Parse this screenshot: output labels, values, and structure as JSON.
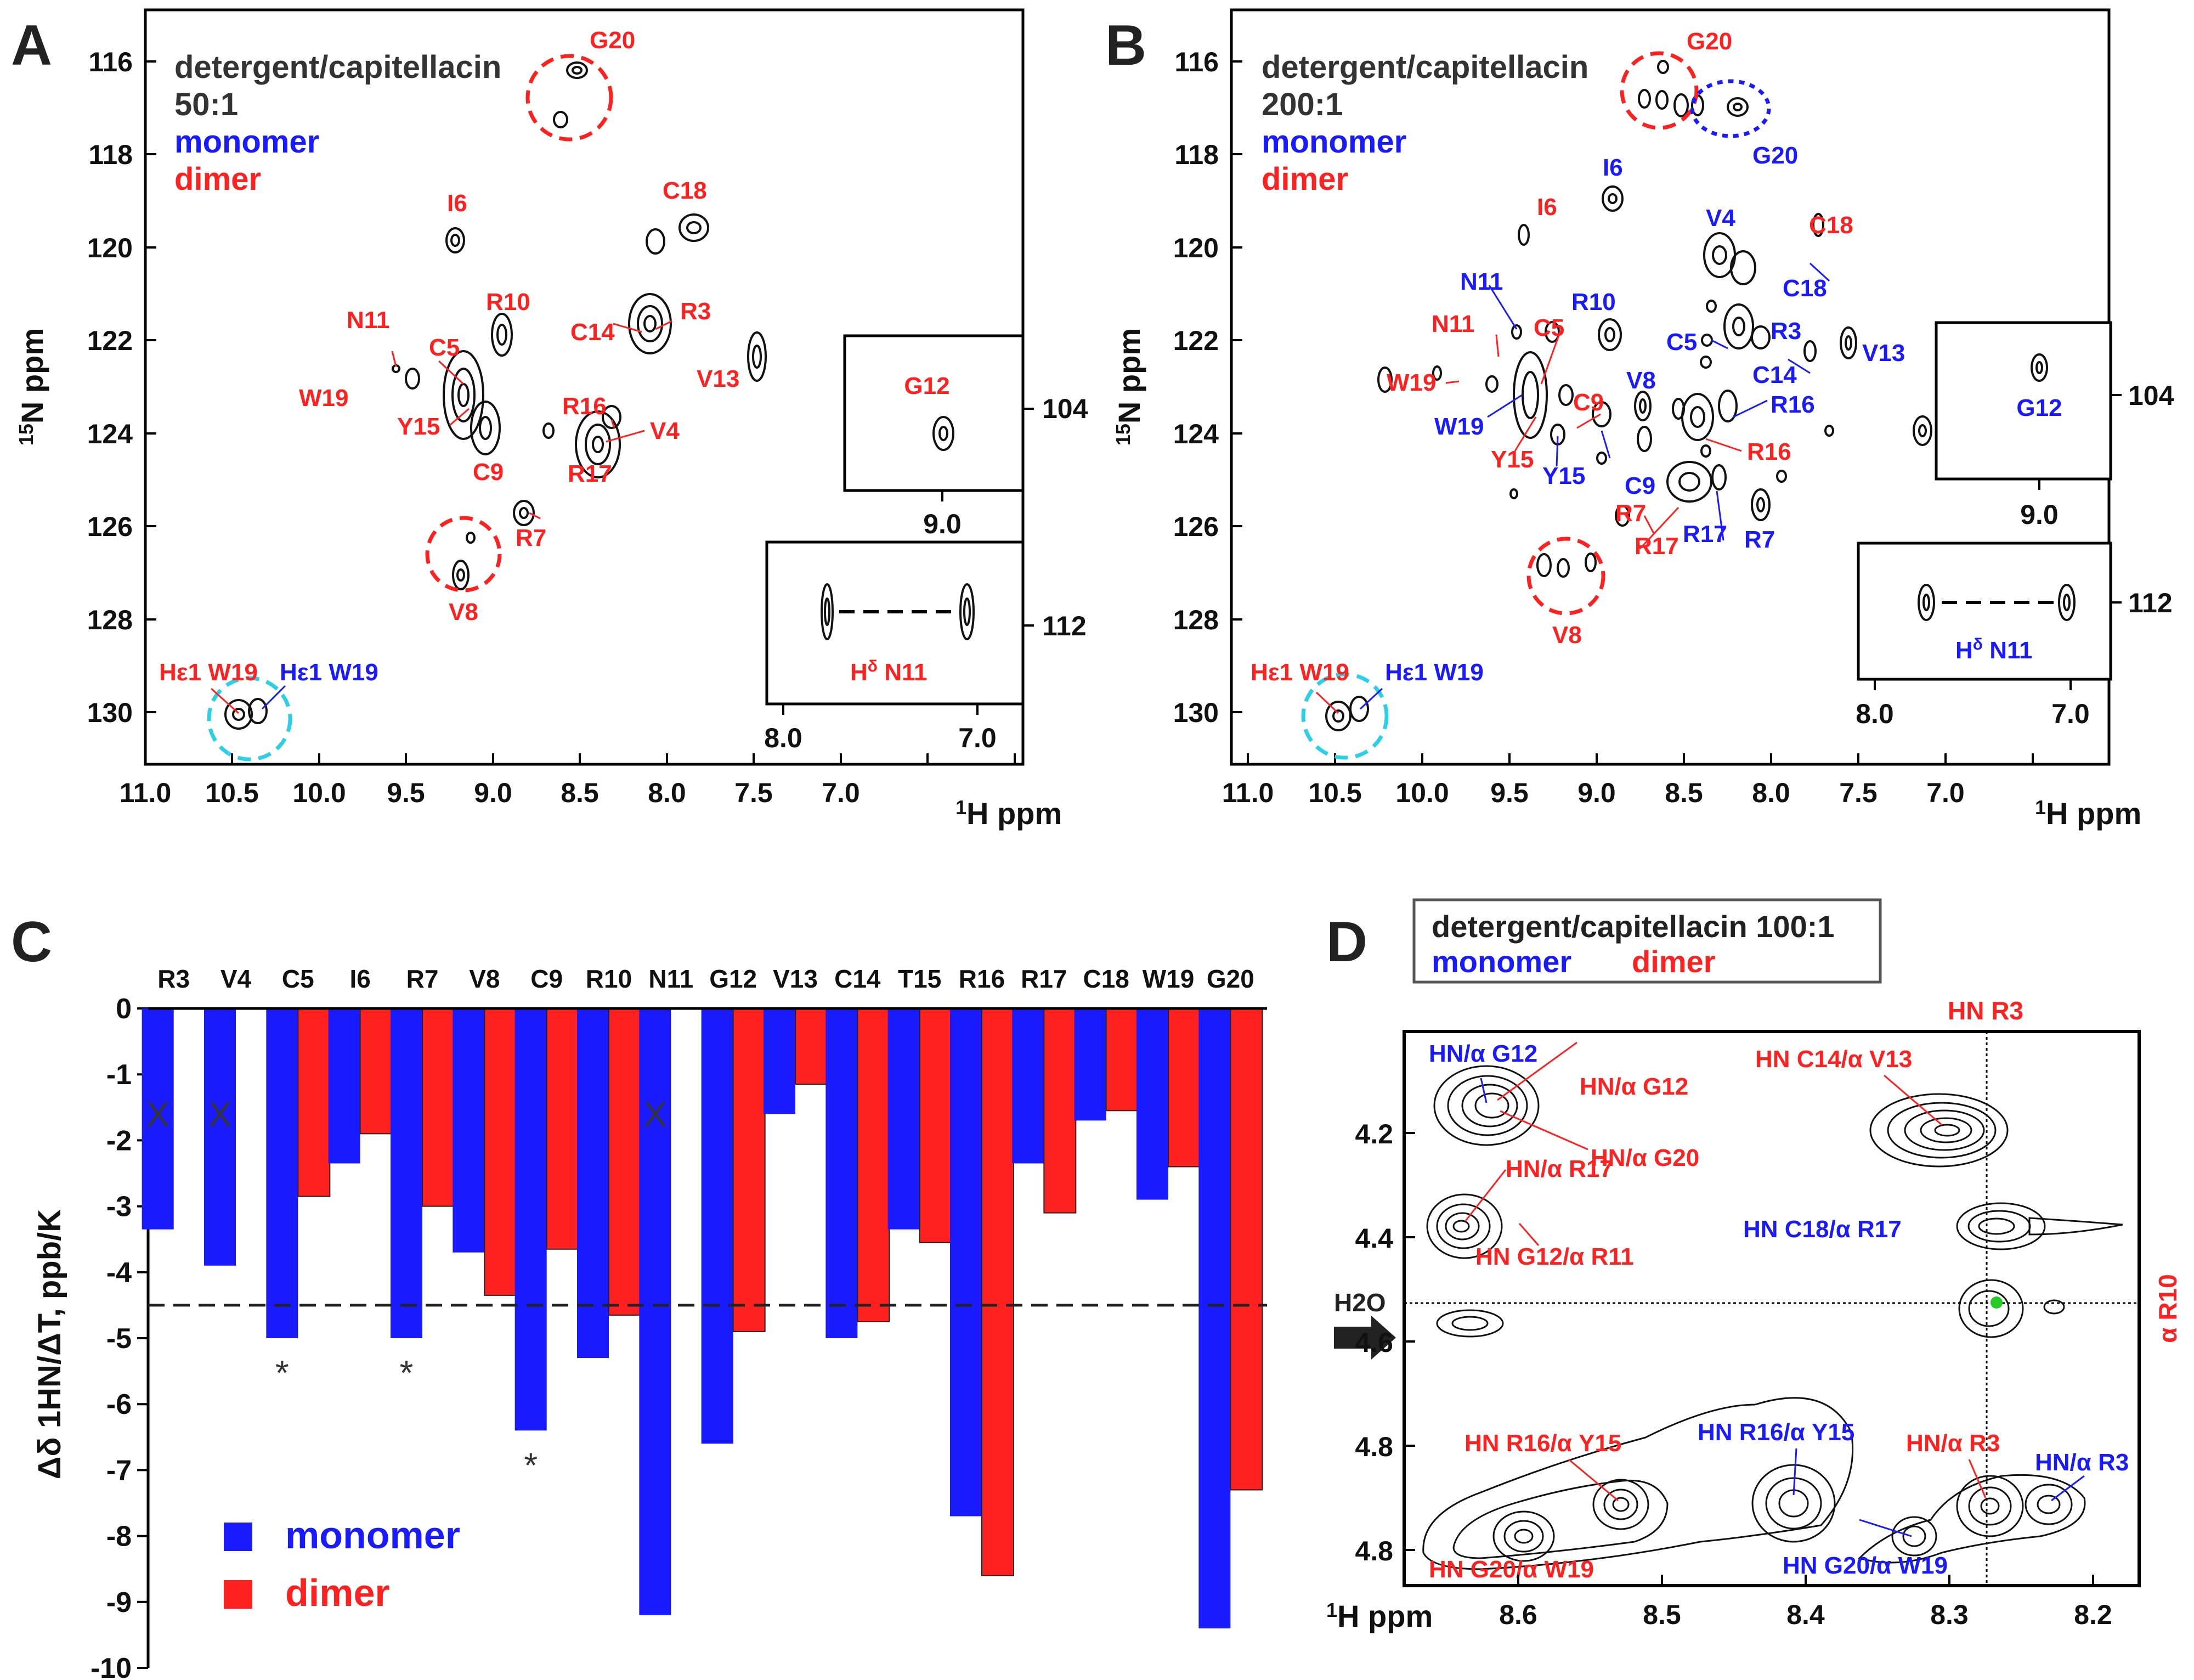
{
  "colors": {
    "monomer": "#1a1aff",
    "dimer": "#ff2020",
    "text": "#222222",
    "cyan": "#2cd0e6",
    "green": "#22cc22"
  },
  "panels": {
    "A": {
      "label": "A",
      "legend": [
        "detergent/capitellacin",
        "50:1",
        "monomer",
        "dimer"
      ],
      "x_ticks": [
        "11.0",
        "10.5",
        "10.0",
        "9.5",
        "9.0",
        "8.5",
        "8.0",
        "7.5",
        "7.0"
      ],
      "y_ticks": [
        "116",
        "118",
        "120",
        "122",
        "124",
        "126",
        "128",
        "130"
      ],
      "xlabel": "1H ppm",
      "ylabel": "15N ppm",
      "inset_top": {
        "label": "G12",
        "x_tick": "9.0",
        "y_tick": "104"
      },
      "inset_bottom": {
        "label": "Hδ N11",
        "x_ticks": [
          "8.0",
          "7.0"
        ],
        "y_tick": "112"
      },
      "red_labels": [
        "G20",
        "I6",
        "C18",
        "R10",
        "R3",
        "C14",
        "N11",
        "C5",
        "W19",
        "Y15",
        "V13",
        "R16",
        "V4",
        "C9",
        "R17",
        "R7",
        "V8"
      ],
      "he1_dimer": "Hε1 W19",
      "he1_monomer": "Hε1 W19"
    },
    "B": {
      "label": "B",
      "legend": [
        "detergent/capitellacin",
        "200:1",
        "monomer",
        "dimer"
      ],
      "x_ticks": [
        "11.0",
        "10.5",
        "10.0",
        "9.5",
        "9.0",
        "8.5",
        "8.0",
        "7.5",
        "7.0"
      ],
      "y_ticks": [
        "116",
        "118",
        "120",
        "122",
        "124",
        "126",
        "128",
        "130"
      ],
      "xlabel": "1H ppm",
      "ylabel": "15N ppm",
      "inset_top": {
        "label": "G12",
        "x_tick": "9.0",
        "y_tick": "104"
      },
      "inset_bottom": {
        "label": "Hδ N11",
        "x_ticks": [
          "8.0",
          "7.0"
        ],
        "y_tick": "112"
      },
      "red_labels": [
        "G20",
        "I6",
        "C18",
        "N11",
        "C5",
        "W19",
        "C9",
        "Y15",
        "R16",
        "R7",
        "R17",
        "V8"
      ],
      "blue_labels": [
        "G20",
        "I6",
        "V4",
        "C18",
        "N11",
        "R10",
        "C5",
        "R3",
        "C14",
        "V13",
        "V8",
        "R16",
        "W19",
        "Y15",
        "C9",
        "R17",
        "R7"
      ],
      "he1_dimer": "Hε1 W19",
      "he1_monomer": "Hε1 W19"
    },
    "C": {
      "label": "C"
    },
    "D": {
      "label": "D",
      "legend": [
        "detergent/capitellacin 100:1",
        "monomer",
        "dimer"
      ],
      "x_ticks": [
        "8.6",
        "8.5",
        "8.4",
        "8.3",
        "8.2"
      ],
      "y_ticks": [
        "4.2",
        "4.4",
        "4.6",
        "4.8"
      ],
      "xlabel": "1H ppm",
      "top_label": "HN R3",
      "right_label": "α R10",
      "water_label": "H2O",
      "labels": {
        "b_hn_g12": "HN/α G12",
        "r_hn_g12": "HN/α G12",
        "r_hn_g20": "HN/α G20",
        "r_c14_v13": "HN C14/α V13",
        "r_hn_r17": "HN/α R17",
        "b_c18_r17": "HN C18/α R17",
        "r_g12_r11": "HN G12/α R11",
        "r_r16_y15": "HN R16/α Y15",
        "b_r16_y15": "HN R16/α Y15",
        "r_hn_r3": "HN/α R3",
        "b_hn_r3": "HN/α R3",
        "r_g20_w19": "HN G20/α W19",
        "b_g20_w19": "HN G20/α W19"
      }
    }
  },
  "chart_data": {
    "type": "bar",
    "title": "",
    "categories": [
      "R3",
      "V4",
      "C5",
      "I6",
      "R7",
      "V8",
      "C9",
      "R10",
      "N11",
      "G12",
      "V13",
      "C14",
      "T15",
      "R16",
      "R17",
      "C18",
      "W19",
      "G20"
    ],
    "series": [
      {
        "name": "monomer",
        "values": [
          -3.35,
          -3.9,
          -5.0,
          -2.35,
          -5.0,
          -3.7,
          -6.4,
          -5.3,
          -9.2,
          -6.6,
          -1.6,
          -5.0,
          -3.35,
          -7.7,
          -2.35,
          -1.7,
          -2.9,
          -9.4
        ]
      },
      {
        "name": "dimer",
        "values": [
          null,
          null,
          -2.85,
          -1.9,
          -3.0,
          -4.35,
          -3.65,
          -4.65,
          null,
          -4.9,
          -1.15,
          -4.75,
          -3.55,
          -8.6,
          -3.1,
          -1.55,
          -2.4,
          -7.3
        ]
      }
    ],
    "missing_marker": "X",
    "significance_marker": "*",
    "starred": [
      "C5",
      "R7",
      "C9"
    ],
    "threshold": -4.5,
    "ylabel": "Δδ 1HN/ΔT, ppb/K",
    "ylim": [
      -10,
      0
    ],
    "yticks": [
      "0",
      "-1",
      "-2",
      "-3",
      "-4",
      "-5",
      "-6",
      "-7",
      "-8",
      "-9",
      "-10"
    ],
    "legend": [
      "monomer",
      "dimer"
    ]
  }
}
